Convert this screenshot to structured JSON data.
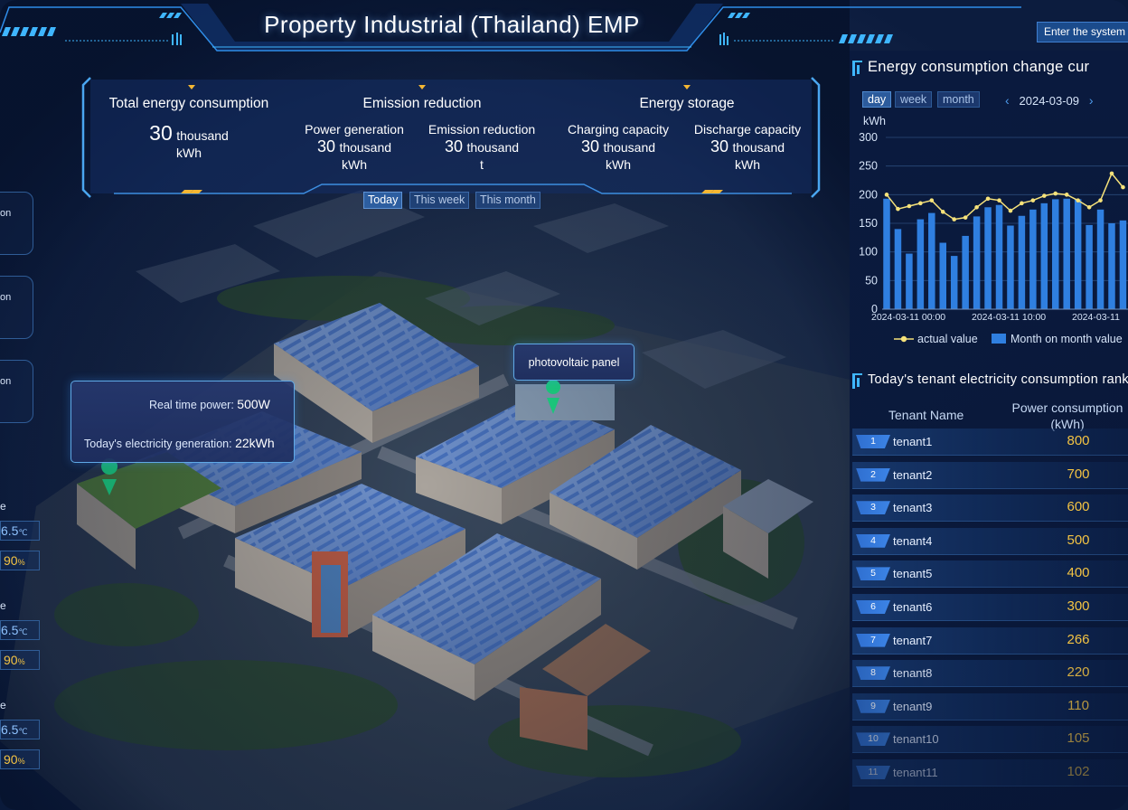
{
  "header": {
    "title": "Property Industrial (Thailand)  EMP",
    "enter_button": "Enter the system"
  },
  "summary": {
    "total": {
      "label": "Total energy consumption",
      "value": "30",
      "unit_main": "thousand",
      "unit_sub": "kWh"
    },
    "emission": {
      "label": "Emission reduction",
      "items": [
        {
          "label": "Power generation",
          "value": "30",
          "unit_main": "thousand",
          "unit_sub": "kWh"
        },
        {
          "label": "Emission reduction",
          "value": "30",
          "unit_main": "thousand",
          "unit_sub": "t"
        }
      ]
    },
    "storage": {
      "label": "Energy storage",
      "items": [
        {
          "label": "Charging capacity",
          "value": "30",
          "unit_main": "thousand",
          "unit_sub": "kWh"
        },
        {
          "label": "Discharge capacity",
          "value": "30",
          "unit_main": "thousand",
          "unit_sub": "kWh"
        }
      ]
    },
    "tabs": [
      "Today",
      "This week",
      "This month"
    ]
  },
  "popups": {
    "photovoltaic": "photovoltaic panel",
    "realtime": {
      "power_label": "Real time power:",
      "power_value": "500W",
      "generation_label": "Today's electricity generation:",
      "generation_value": "22kWh"
    }
  },
  "left_strip": {
    "card_labels": [
      "on",
      "on",
      "on"
    ],
    "sensors": [
      {
        "label": "e",
        "temp": "6.5",
        "temp_unit": "℃",
        "humidity": "90",
        "humidity_unit": "%"
      },
      {
        "label": "e",
        "temp": "6.5",
        "temp_unit": "℃",
        "humidity": "90",
        "humidity_unit": "%"
      },
      {
        "label": "e",
        "temp": "6.5",
        "temp_unit": "℃",
        "humidity": "90",
        "humidity_unit": "%"
      }
    ]
  },
  "energy_chart": {
    "title": "Energy consumption change cur",
    "tabs": [
      "day",
      "week",
      "month"
    ],
    "date": "2024-03-09",
    "unit": "kWh",
    "legend_actual": "actual value",
    "legend_mom": "Month on month value"
  },
  "chart_data": {
    "type": "bar",
    "title": "Energy consumption change curve",
    "ylabel": "kWh",
    "ylim": [
      0,
      300
    ],
    "yticks": [
      0,
      50,
      100,
      150,
      200,
      250,
      300
    ],
    "xtick_labels": [
      "2024-03-11 00:00",
      "2024-03-11 10:00",
      "2024-03-11"
    ],
    "series": [
      {
        "name": "Month on month value",
        "kind": "bar",
        "values": [
          193,
          140,
          97,
          157,
          168,
          116,
          93,
          128,
          162,
          178,
          182,
          146,
          163,
          174,
          185,
          192,
          193,
          192,
          147,
          174,
          150,
          155
        ]
      },
      {
        "name": "actual value",
        "kind": "line",
        "values": [
          200,
          175,
          180,
          185,
          190,
          170,
          157,
          160,
          178,
          193,
          190,
          172,
          185,
          190,
          198,
          202,
          200,
          190,
          178,
          190,
          237,
          213
        ]
      }
    ]
  },
  "ranking": {
    "title": "Today's tenant electricity consumption rank",
    "col_name": "Tenant Name",
    "col_power": "Power consumption (kWh)",
    "rows": [
      {
        "rank": "1",
        "name": "tenant1",
        "value": "800"
      },
      {
        "rank": "2",
        "name": "tenant2",
        "value": "700"
      },
      {
        "rank": "3",
        "name": "tenant3",
        "value": "600"
      },
      {
        "rank": "4",
        "name": "tenant4",
        "value": "500"
      },
      {
        "rank": "5",
        "name": "tenant5",
        "value": "400"
      },
      {
        "rank": "6",
        "name": "tenant6",
        "value": "300"
      },
      {
        "rank": "7",
        "name": "tenant7",
        "value": "266"
      },
      {
        "rank": "8",
        "name": "tenant8",
        "value": "220"
      },
      {
        "rank": "9",
        "name": "tenant9",
        "value": "110"
      },
      {
        "rank": "10",
        "name": "tenant10",
        "value": "105"
      },
      {
        "rank": "11",
        "name": "tenant11",
        "value": "102"
      }
    ]
  },
  "colors": {
    "accent": "#3fb6ff",
    "bar": "#2f7fe0",
    "line": "#f6e27a",
    "value": "#f3c343",
    "gold": "#f5b733"
  }
}
